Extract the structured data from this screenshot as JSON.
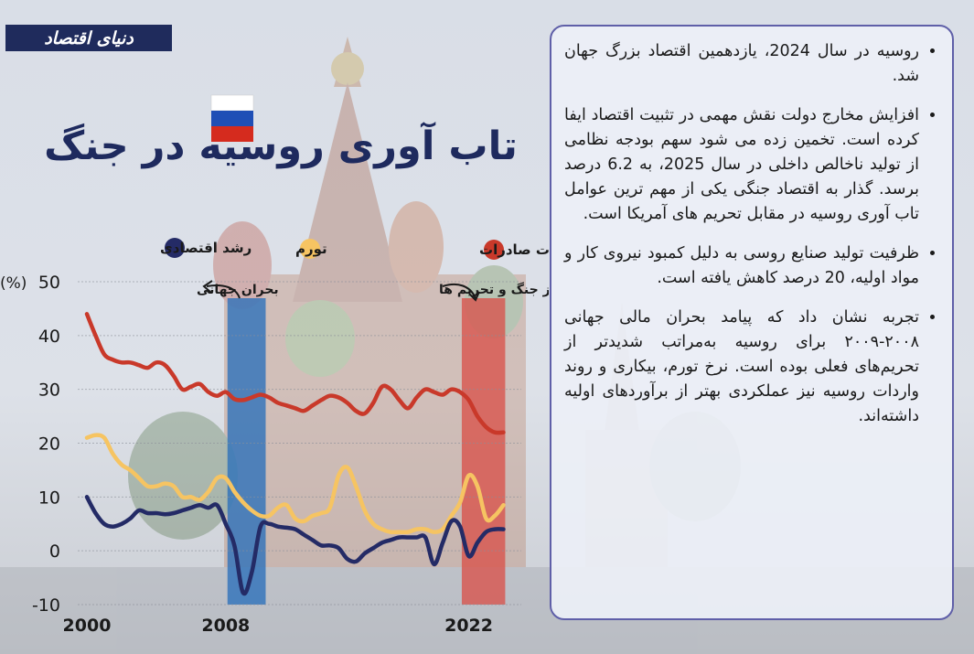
{
  "brand": {
    "logo_text": "دنیای اقتصاد"
  },
  "title": "تاب آوری روسیه در جنگ",
  "flag": {
    "colors": [
      "#ffffff",
      "#1f4fb6",
      "#d52b1e"
    ]
  },
  "legend": [
    {
      "label": "تغییرات صادرات",
      "color": "#c9392a"
    },
    {
      "label": "تورم",
      "color": "#f6c462"
    },
    {
      "label": "رشد اقتصادی",
      "color": "#242b66"
    }
  ],
  "annotations": {
    "crisis": "بحران جهانی",
    "war": "آغاز جنگ و تحریم ها"
  },
  "bullets": [
    "روسیه در سال 2024، یازدهمین اقتصاد بزرگ جهان شد.",
    "افزایش مخارج دولت نقش مهمی در تثبیت اقتصاد ایفا کرده است. تخمین زده می شود سهم بودجه نظامی از تولید ناخالص داخلی در سال 2025، به 6.2 درصد برسد. گذار به اقتصاد جنگی یکی از مهم ترین عوامل تاب آوری روسیه در مقابل تحریم های آمریکا است.",
    "ظرفیت تولید صنایع روسی به دلیل کمبود نیروی کار و مواد اولیه، 20 درصد کاهش یافته است.",
    "تجربه نشان داد که پیامد بحران مالی جهانی ۲۰۰۸-۲۰۰۹ برای روسیه به‌مراتب شدیدتر از تحریم‌های فعلی بوده است. نرخ تورم، بیکاری و روند واردات روسیه نیز عملکردی بهتر از برآوردهای اولیه داشته‌اند."
  ],
  "chart_data": {
    "type": "line",
    "ylabel": "(%)",
    "ylim": [
      -10,
      50
    ],
    "yticks": [
      50,
      40,
      30,
      20,
      10,
      0,
      -10
    ],
    "xlim": [
      2000,
      2024.5
    ],
    "xticks": [
      2000,
      2008,
      2022
    ],
    "highlight_bands": [
      {
        "from": 2008.1,
        "to": 2010.3,
        "color": "#2a6fba"
      },
      {
        "from": 2021.6,
        "to": 2024.1,
        "color": "#d8524a"
      }
    ],
    "series": [
      {
        "name": "تغییرات صادرات",
        "color": "#c9392a",
        "x": [
          2000,
          2000.5,
          2001,
          2001.5,
          2002,
          2002.5,
          2003,
          2003.5,
          2004,
          2004.5,
          2005,
          2005.5,
          2006,
          2006.5,
          2007,
          2007.5,
          2008,
          2008.5,
          2009,
          2009.5,
          2010,
          2010.5,
          2011,
          2011.5,
          2012,
          2012.5,
          2013,
          2013.5,
          2014,
          2014.5,
          2015,
          2015.5,
          2016,
          2016.5,
          2017,
          2017.5,
          2018,
          2018.5,
          2019,
          2019.5,
          2020,
          2020.5,
          2021,
          2021.5,
          2022,
          2022.5,
          2023,
          2023.5,
          2024
        ],
        "values": [
          44,
          40,
          36.5,
          35.5,
          35,
          35,
          34.5,
          34,
          35,
          34.5,
          32.5,
          30,
          30.5,
          31,
          29.5,
          28.8,
          29.5,
          28.2,
          28,
          28.5,
          29,
          28.5,
          27.5,
          27,
          26.5,
          26,
          27,
          28,
          28.8,
          28.5,
          27.5,
          26,
          25.5,
          27.5,
          30.5,
          30,
          28,
          26.5,
          28.5,
          30,
          29.5,
          29,
          30,
          29.5,
          28,
          25,
          23,
          22,
          22
        ]
      },
      {
        "name": "تورم",
        "color": "#f6c462",
        "x": [
          2000,
          2000.5,
          2001,
          2001.5,
          2002,
          2002.5,
          2003,
          2003.5,
          2004,
          2004.5,
          2005,
          2005.5,
          2006,
          2006.5,
          2007,
          2007.5,
          2008,
          2008.5,
          2009,
          2009.5,
          2010,
          2010.5,
          2011,
          2011.5,
          2012,
          2012.5,
          2013,
          2013.5,
          2014,
          2014.5,
          2015,
          2015.5,
          2016,
          2016.5,
          2017,
          2017.5,
          2018,
          2018.5,
          2019,
          2019.5,
          2020,
          2020.5,
          2021,
          2021.5,
          2022,
          2022.5,
          2023,
          2023.5,
          2024
        ],
        "values": [
          21,
          21.5,
          21,
          18,
          16,
          15,
          13.5,
          12,
          12,
          12.5,
          12,
          10,
          10,
          9.5,
          11,
          13.5,
          13.5,
          11,
          9,
          7.5,
          6.5,
          6.5,
          8,
          8.5,
          6,
          5.5,
          6.5,
          7,
          8,
          14,
          15.5,
          12,
          7.5,
          5,
          4,
          3.5,
          3.5,
          3.5,
          4,
          4,
          3.5,
          4,
          6.5,
          9,
          14,
          12,
          6,
          6.5,
          8.5
        ]
      },
      {
        "name": "رشد اقتصادی",
        "color": "#242b66",
        "x": [
          2000,
          2000.5,
          2001,
          2001.5,
          2002,
          2002.5,
          2003,
          2003.5,
          2004,
          2004.5,
          2005,
          2005.5,
          2006,
          2006.5,
          2007,
          2007.5,
          2008,
          2008.5,
          2009,
          2009.5,
          2010,
          2010.5,
          2011,
          2011.5,
          2012,
          2012.5,
          2013,
          2013.5,
          2014,
          2014.5,
          2015,
          2015.5,
          2016,
          2016.5,
          2017,
          2017.5,
          2018,
          2018.5,
          2019,
          2019.5,
          2020,
          2020.5,
          2021,
          2021.5,
          2022,
          2022.5,
          2023,
          2023.5,
          2024
        ],
        "values": [
          10,
          7,
          5,
          4.5,
          5,
          6,
          7.5,
          7,
          7,
          6.8,
          7,
          7.5,
          8,
          8.5,
          8,
          8.5,
          5,
          1,
          -7.8,
          -4,
          4.5,
          5,
          4.5,
          4.3,
          4,
          3,
          2,
          1,
          1,
          0.5,
          -1.5,
          -2,
          -0.5,
          0.5,
          1.5,
          2,
          2.5,
          2.5,
          2.5,
          2.5,
          -2.5,
          1.5,
          5.5,
          4.5,
          -1,
          1.5,
          3.5,
          4,
          4
        ]
      }
    ]
  }
}
